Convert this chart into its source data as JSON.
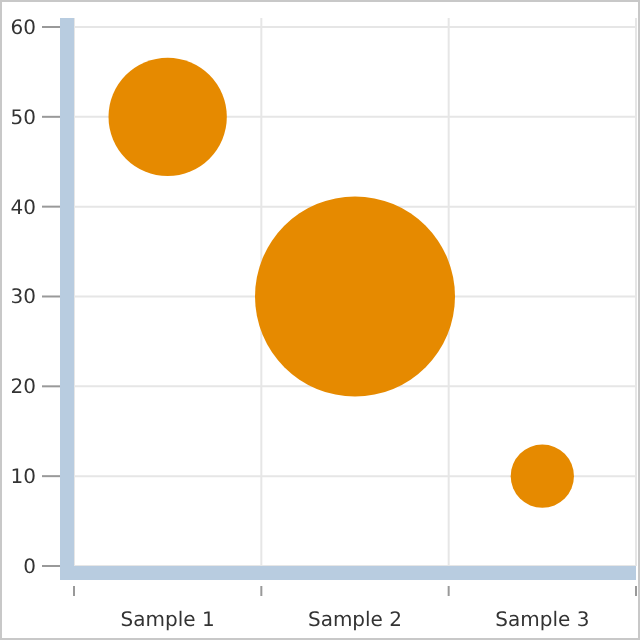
{
  "chart_data": {
    "type": "bubble",
    "categories": [
      "Sample 1",
      "Sample 2",
      "Sample 3"
    ],
    "values": [
      50,
      30,
      10
    ],
    "sizes": [
      0.35,
      1,
      0.1
    ],
    "color": "#e68a00",
    "ylim": [
      0,
      61
    ],
    "yticks": [
      0,
      10,
      20,
      30,
      40,
      50,
      60
    ],
    "grid": true
  }
}
